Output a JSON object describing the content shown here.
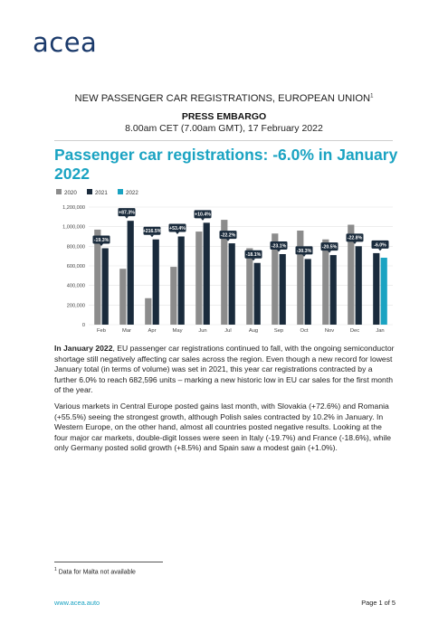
{
  "brand": {
    "logo_text": "acea",
    "color": "#1b3a6b"
  },
  "header": {
    "doc_kind": "NEW PASSENGER CAR REGISTRATIONS, EUROPEAN UNION",
    "doc_kind_footnote_mark": "1",
    "embargo_label": "PRESS EMBARGO",
    "embargo_time": "8.00am CET (7.00am GMT), 17 February 2022"
  },
  "headline": "Passenger car registrations: -6.0% in January 2022",
  "chart_data": {
    "type": "bar",
    "categories": [
      "Feb",
      "Mar",
      "Apr",
      "May",
      "Jun",
      "Jul",
      "Aug",
      "Sep",
      "Oct",
      "Nov",
      "Dec",
      "Jan"
    ],
    "series": [
      {
        "name": "2020",
        "color": "#8c8c8c",
        "values": [
          970000,
          570000,
          270000,
          590000,
          950000,
          1070000,
          780000,
          930000,
          960000,
          870000,
          1020000,
          null
        ]
      },
      {
        "name": "2021",
        "color": "#1a2b3c",
        "values": [
          780000,
          1060000,
          870000,
          900000,
          1040000,
          830000,
          630000,
          720000,
          670000,
          710000,
          800000,
          730000
        ]
      },
      {
        "name": "2022",
        "color": "#1aa3c2",
        "values": [
          null,
          null,
          null,
          null,
          null,
          null,
          null,
          null,
          null,
          null,
          null,
          683000
        ]
      }
    ],
    "change_labels": [
      "-19.3%",
      "+87.3%",
      "+216.5%",
      "+53.4%",
      "+10.4%",
      "-22.2%",
      "-18.1%",
      "-23.1%",
      "-30.3%",
      "-20.5%",
      "-22.8%",
      "-6.0%"
    ],
    "change_label_colors": [
      "#1a2b3c",
      "#1a2b3c",
      "#1a2b3c",
      "#1a2b3c",
      "#1a2b3c",
      "#1a2b3c",
      "#1a2b3c",
      "#1a2b3c",
      "#1a2b3c",
      "#1a2b3c",
      "#1a2b3c",
      "#1a2b3c"
    ],
    "y_ticks": [
      "0",
      "200,000",
      "400,000",
      "600,000",
      "800,000",
      "1,000,000",
      "1,200,000"
    ],
    "ylim": [
      0,
      1200000
    ],
    "legend_position": "top-left",
    "grid": true
  },
  "paragraphs": {
    "p1_lead": "In January 2022",
    "p1_rest": ", EU passenger car registrations continued to fall, with the ongoing semiconductor shortage still negatively affecting car sales across the region. Even though a new record for lowest January total (in terms of volume) was set in 2021, this year car registrations contracted by a further 6.0% to reach 682,596 units – marking a new historic low in EU car sales for the first month of the year.",
    "p2": "Various markets in Central Europe posted gains last month, with Slovakia (+72.6%) and Romania (+55.5%) seeing the strongest growth, although Polish sales contracted by 10.2% in January. In Western Europe, on the other hand, almost all countries posted negative results. Looking at the four major car markets, double-digit losses were seen in Italy (-19.7%) and France (-18.6%), while only Germany posted solid growth (+8.5%) and Spain saw a modest gain (+1.0%)."
  },
  "footnote": {
    "mark": "1",
    "text": "Data for Malta not available"
  },
  "footer": {
    "url": "www.acea.auto",
    "page": "Page 1 of 5"
  }
}
